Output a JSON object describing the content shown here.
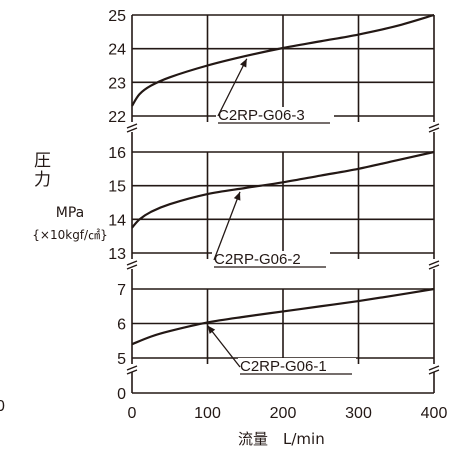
{
  "chart_data": {
    "type": "line",
    "title": "",
    "ylabel_chars": [
      "圧",
      "力"
    ],
    "ylabel_unit": "MPa",
    "ylabel_unit_alt": "{×10kgf/㎠}",
    "xlabel": "流量　L/min",
    "x_ticks": [
      "0",
      "100",
      "200",
      "300",
      "400"
    ],
    "xlim": [
      0,
      400
    ],
    "grid": true,
    "broken_axis": true,
    "stray_tick_label": "0",
    "panels": [
      {
        "ylim": [
          22,
          25
        ],
        "y_ticks": [
          "25",
          "24",
          "23",
          "22"
        ],
        "axis_break": "bottom"
      },
      {
        "ylim": [
          13,
          16
        ],
        "y_ticks": [
          "16",
          "15",
          "14",
          "13"
        ],
        "axis_break": "bottom"
      },
      {
        "ylim": [
          5,
          7
        ],
        "y_ticks": [
          "7",
          "6",
          "5"
        ],
        "extra_tick": "0",
        "axis_break": "bottom"
      }
    ],
    "series": [
      {
        "name": "C2RP-G06-3",
        "panel": 0,
        "x": [
          0,
          10,
          25,
          50,
          100,
          150,
          200,
          250,
          300,
          350,
          400
        ],
        "y": [
          22.3,
          22.65,
          22.9,
          23.15,
          23.5,
          23.78,
          24.02,
          24.22,
          24.42,
          24.67,
          25.0
        ]
      },
      {
        "name": "C2RP-G06-2",
        "panel": 1,
        "x": [
          0,
          10,
          25,
          50,
          100,
          150,
          200,
          250,
          300,
          350,
          400
        ],
        "y": [
          13.75,
          14.0,
          14.22,
          14.45,
          14.75,
          14.93,
          15.1,
          15.3,
          15.5,
          15.75,
          16.0
        ]
      },
      {
        "name": "C2RP-G06-1",
        "panel": 2,
        "x": [
          0,
          25,
          50,
          100,
          150,
          200,
          250,
          300,
          350,
          400
        ],
        "y": [
          5.4,
          5.62,
          5.78,
          6.03,
          6.2,
          6.35,
          6.5,
          6.65,
          6.82,
          7.0
        ]
      }
    ],
    "annotations": [
      {
        "text": "C2RP-G06-3",
        "target": "C2RP-G06-3",
        "point_x": 152
      },
      {
        "text": "C2RP-G06-2",
        "target": "C2RP-G06-2",
        "point_x": 143
      },
      {
        "text": "C2RP-G06-1",
        "target": "C2RP-G06-1",
        "point_x": 100
      }
    ]
  }
}
